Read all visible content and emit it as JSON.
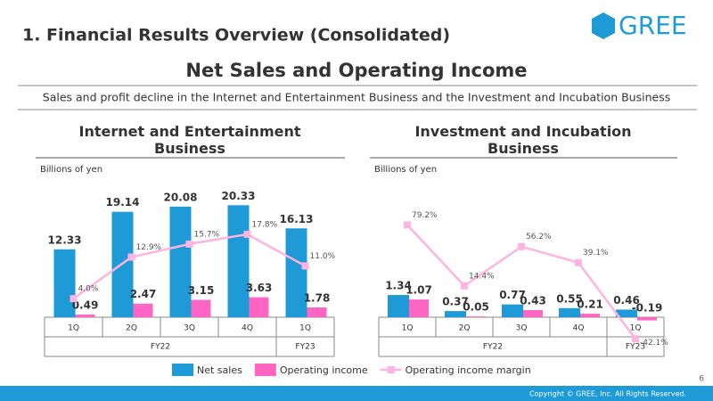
{
  "slide": {
    "heading": "1. Financial Results Overview (Consolidated)",
    "logo": "GREE",
    "title": "Net Sales and Operating Income",
    "summary": "Sales and profit decline in the Internet and Entertainment Business and the Investment and Incubation Business",
    "page": "6",
    "copyright": "Copyright © GREE, Inc. All Rights Reserved."
  },
  "chart_data": [
    {
      "type": "bar",
      "title": "Internet and Entertainment Business",
      "unit_label": "Billions of yen",
      "categories": [
        "1Q",
        "2Q",
        "3Q",
        "4Q",
        "1Q"
      ],
      "fiscal_years": [
        "FY22",
        "FY22",
        "FY22",
        "FY22",
        "FY23"
      ],
      "ylim": [
        0,
        22
      ],
      "y2lim": [
        0,
        26
      ],
      "legend": "bottom",
      "series": [
        {
          "name": "Net sales",
          "type": "bar",
          "color": "#1e9ad6",
          "values": [
            12.33,
            19.14,
            20.08,
            20.33,
            16.13
          ]
        },
        {
          "name": "Operating income",
          "type": "bar",
          "color": "#ff66c4",
          "values": [
            0.49,
            2.47,
            3.15,
            3.63,
            1.78
          ]
        },
        {
          "name": "Operating income margin",
          "type": "line",
          "axis": "y2",
          "color": "#ffb3e0",
          "values": [
            4.0,
            12.9,
            15.7,
            17.8,
            11.0
          ],
          "value_labels": [
            "4.0%",
            "12.9%",
            "15.7%",
            "17.8%",
            "11.0%"
          ]
        }
      ]
    },
    {
      "type": "bar",
      "title": "Investment and Incubation Business",
      "unit_label": "Billions of yen",
      "categories": [
        "1Q",
        "2Q",
        "3Q",
        "4Q",
        "1Q"
      ],
      "fiscal_years": [
        "FY22",
        "FY22",
        "FY22",
        "FY22",
        "FY23"
      ],
      "ylim": [
        0,
        7.3
      ],
      "y2lim": [
        -19,
        110
      ],
      "series": [
        {
          "type": "bar",
          "color": "#1e9ad6",
          "values": [
            1.34,
            0.37,
            0.77,
            0.55,
            0.46
          ]
        },
        {
          "type": "bar",
          "color": "#ff66c4",
          "values": [
            1.07,
            0.05,
            0.43,
            0.21,
            -0.19
          ]
        },
        {
          "type": "line",
          "axis": "y2",
          "color": "#ffb3e0",
          "values": [
            79.2,
            14.4,
            56.2,
            39.1,
            -42.1
          ],
          "value_labels": [
            "79.2%",
            "14.4%",
            "56.2%",
            "39.1%",
            "-42.1%"
          ]
        }
      ]
    }
  ]
}
